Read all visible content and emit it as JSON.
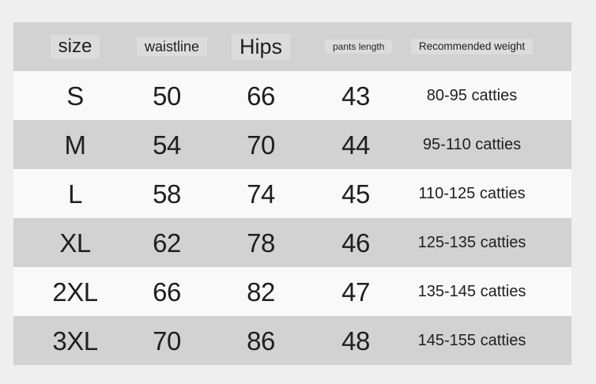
{
  "colors": {
    "page_bg": "#efefef",
    "header_bg": "#d2d2d2",
    "row_light_bg": "#f9f9f9",
    "row_dark_bg": "#d2d2d2",
    "text": "#1f1f1f"
  },
  "table": {
    "header": {
      "size": "size",
      "waistline": "waistline",
      "hips": "Hips",
      "pants_length": "pants length",
      "weight": "Recommended weight"
    },
    "rows": [
      {
        "size": "S",
        "waistline": "50",
        "hips": "66",
        "pants_length": "43",
        "weight": "80-95 catties"
      },
      {
        "size": "M",
        "waistline": "54",
        "hips": "70",
        "pants_length": "44",
        "weight": "95-110 catties"
      },
      {
        "size": "L",
        "waistline": "58",
        "hips": "74",
        "pants_length": "45",
        "weight": "110-125 catties"
      },
      {
        "size": "XL",
        "waistline": "62",
        "hips": "78",
        "pants_length": "46",
        "weight": "125-135 catties"
      },
      {
        "size": "2XL",
        "waistline": "66",
        "hips": "82",
        "pants_length": "47",
        "weight": "135-145 catties"
      },
      {
        "size": "3XL",
        "waistline": "70",
        "hips": "86",
        "pants_length": "48",
        "weight": "145-155 catties"
      }
    ]
  },
  "chart_data": {
    "type": "table",
    "title": "",
    "columns": [
      "size",
      "waistline",
      "Hips",
      "pants length",
      "Recommended weight"
    ],
    "rows": [
      [
        "S",
        "50",
        "66",
        "43",
        "80-95 catties"
      ],
      [
        "M",
        "54",
        "70",
        "44",
        "95-110 catties"
      ],
      [
        "L",
        "58",
        "74",
        "45",
        "110-125 catties"
      ],
      [
        "XL",
        "62",
        "78",
        "46",
        "125-135 catties"
      ],
      [
        "2XL",
        "66",
        "82",
        "47",
        "135-145 catties"
      ],
      [
        "3XL",
        "70",
        "86",
        "48",
        "145-155 catties"
      ]
    ]
  }
}
